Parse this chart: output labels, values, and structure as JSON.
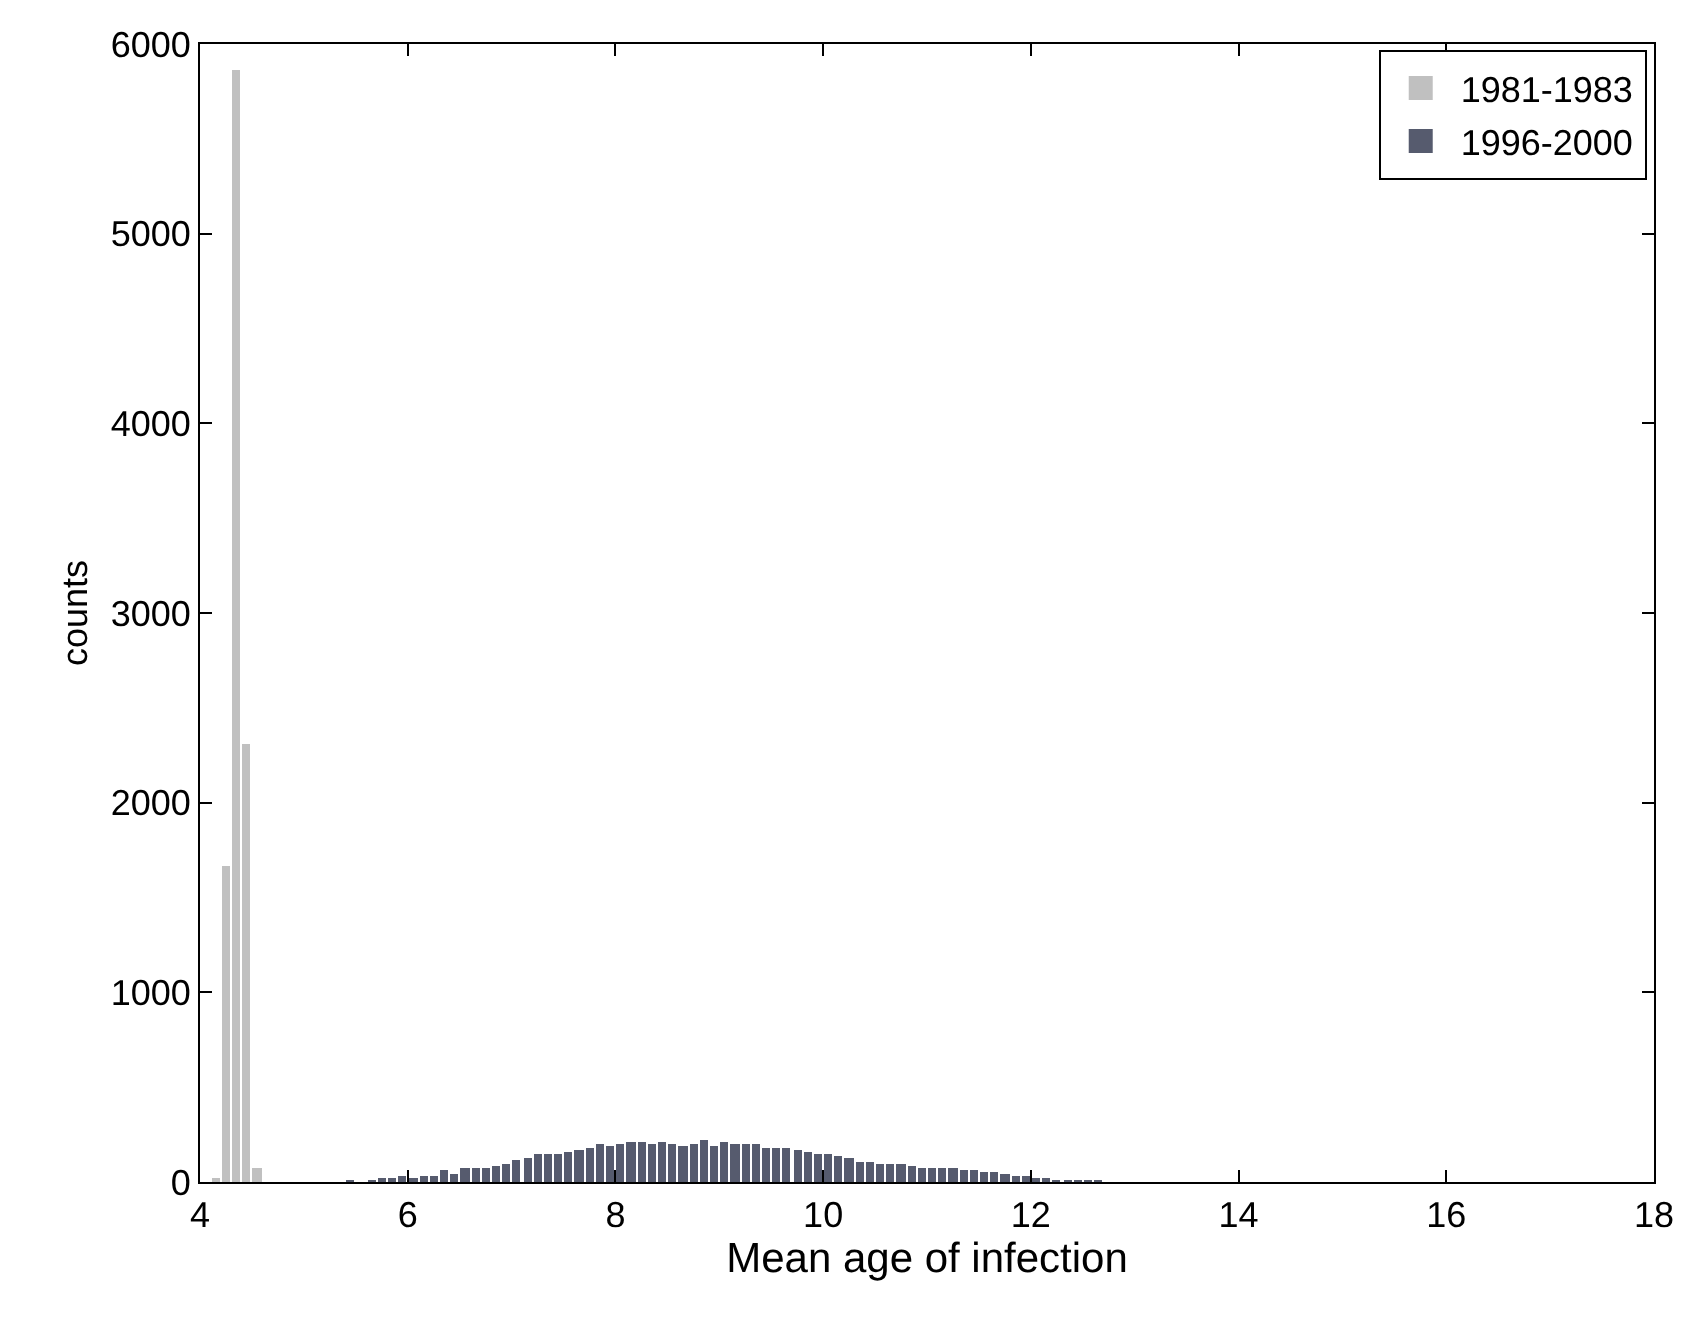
{
  "chart_data": {
    "type": "bar",
    "xlabel": "Mean age of infection",
    "ylabel": "counts",
    "xlim": [
      4,
      18
    ],
    "xticks": [
      4,
      6,
      8,
      10,
      12,
      14,
      16,
      18
    ],
    "ylim": [
      0,
      6000
    ],
    "yticks": [
      0,
      1000,
      2000,
      3000,
      4000,
      5000,
      6000
    ],
    "legend": "top right",
    "series": [
      {
        "name": "1981-1983",
        "color": "#c0c0c0",
        "x": [
          4.15,
          4.25,
          4.35,
          4.45,
          4.55
        ],
        "values": [
          20,
          1670,
          5860,
          2310,
          70
        ]
      },
      {
        "name": "1996-2000",
        "color": "#565b6e",
        "x": [
          5.45,
          5.55,
          5.65,
          5.75,
          5.85,
          5.95,
          6.05,
          6.15,
          6.25,
          6.35,
          6.45,
          6.55,
          6.65,
          6.75,
          6.85,
          6.95,
          7.05,
          7.15,
          7.25,
          7.35,
          7.45,
          7.55,
          7.65,
          7.75,
          7.85,
          7.95,
          8.05,
          8.15,
          8.25,
          8.35,
          8.45,
          8.55,
          8.65,
          8.75,
          8.85,
          8.95,
          9.05,
          9.15,
          9.25,
          9.35,
          9.45,
          9.55,
          9.65,
          9.75,
          9.85,
          9.95,
          10.05,
          10.15,
          10.25,
          10.35,
          10.45,
          10.55,
          10.65,
          10.75,
          10.85,
          10.95,
          11.05,
          11.15,
          11.25,
          11.35,
          11.45,
          11.55,
          11.65,
          11.75,
          11.85,
          11.95,
          12.05,
          12.15,
          12.25,
          12.35,
          12.45,
          12.55,
          12.65
        ],
        "values": [
          10,
          0,
          10,
          20,
          20,
          30,
          20,
          30,
          30,
          60,
          40,
          70,
          70,
          70,
          80,
          100,
          120,
          130,
          150,
          150,
          150,
          160,
          170,
          180,
          200,
          190,
          200,
          210,
          210,
          200,
          210,
          200,
          190,
          200,
          220,
          190,
          210,
          200,
          200,
          200,
          180,
          180,
          180,
          170,
          160,
          150,
          150,
          140,
          130,
          110,
          110,
          100,
          100,
          100,
          80,
          70,
          70,
          70,
          70,
          60,
          60,
          50,
          50,
          40,
          30,
          30,
          20,
          20,
          10,
          10,
          10,
          10,
          10
        ]
      }
    ]
  }
}
